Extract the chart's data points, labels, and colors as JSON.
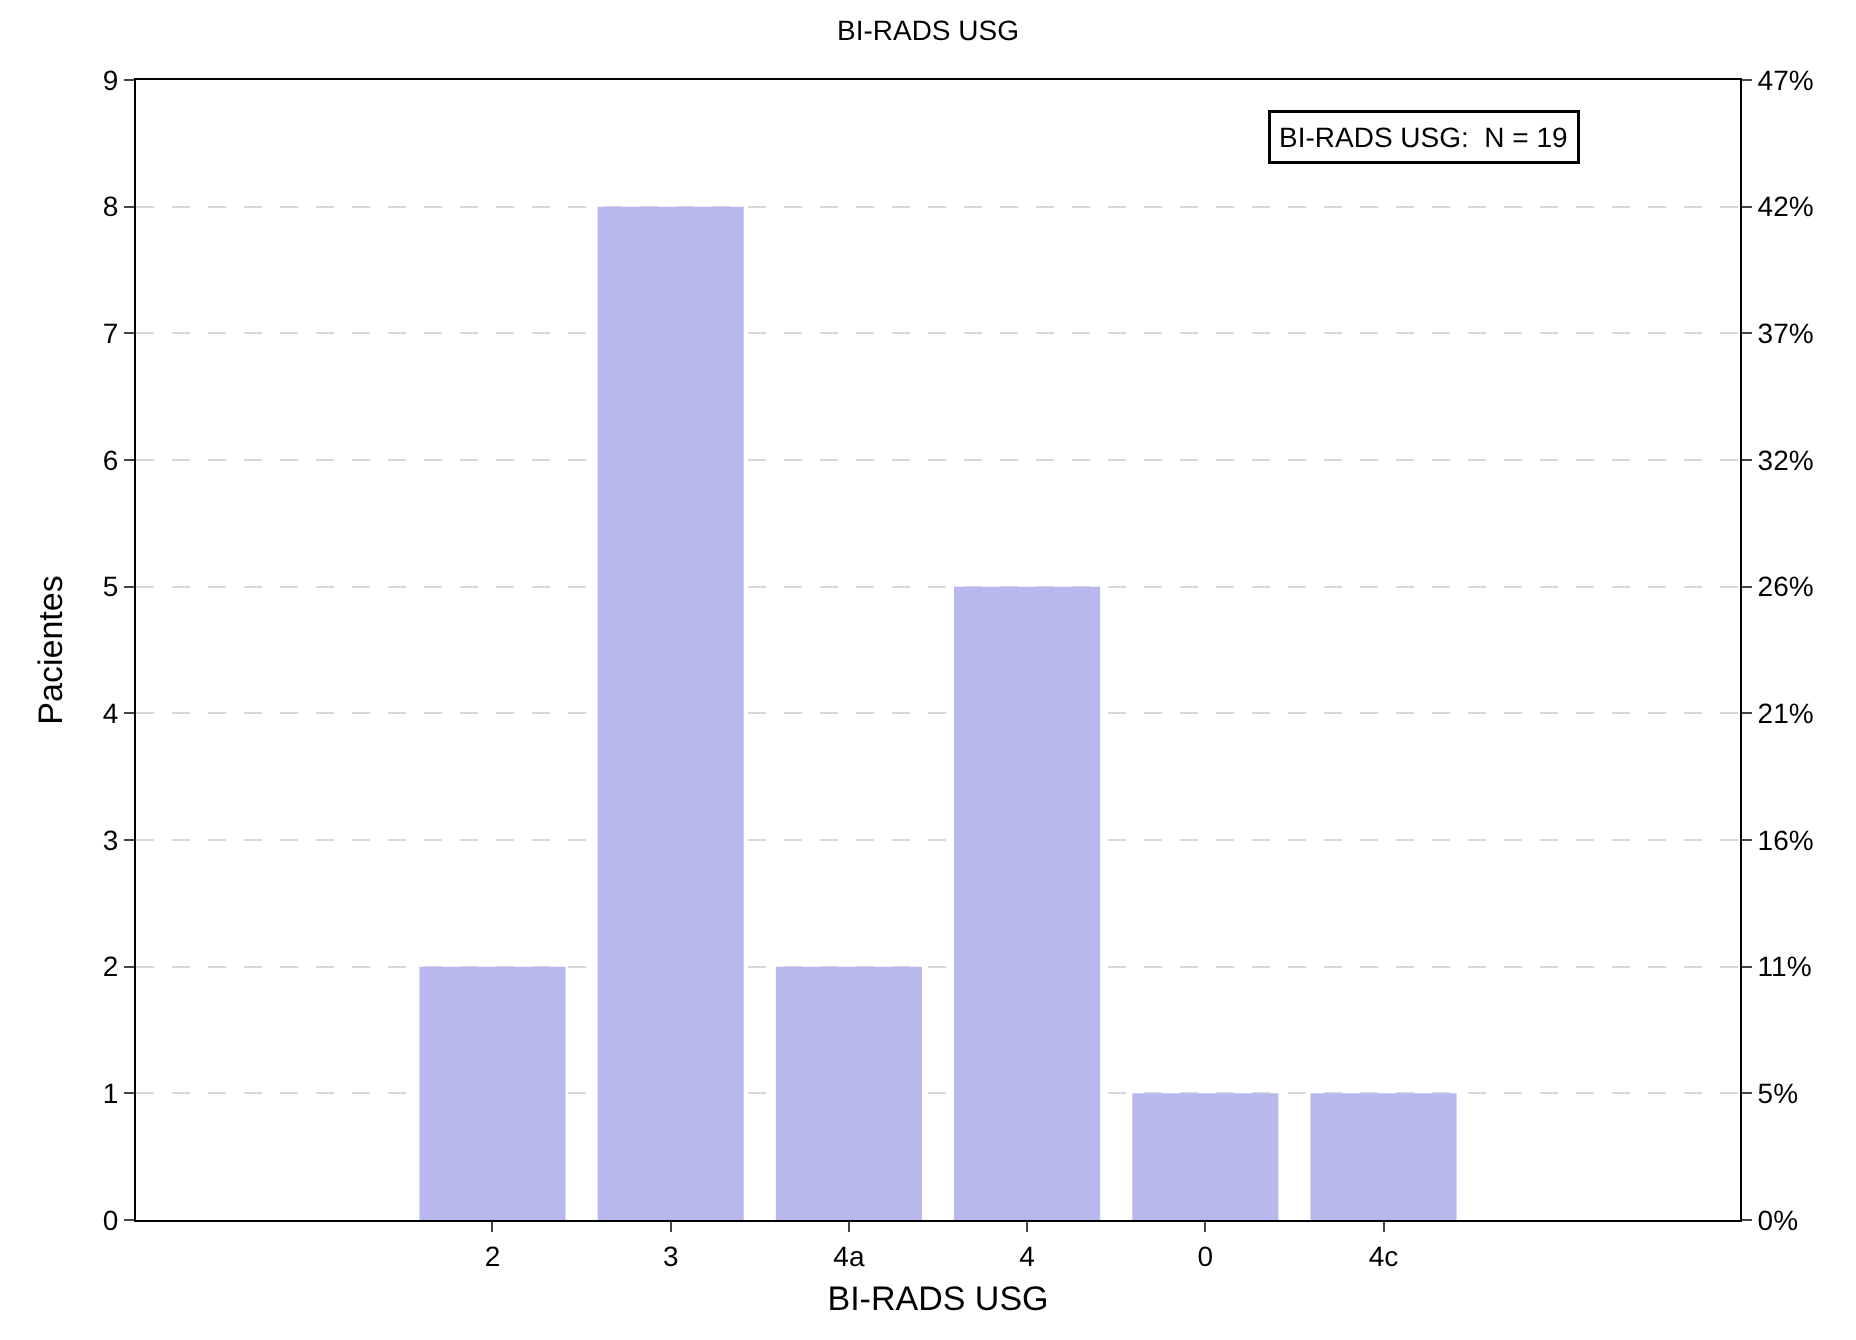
{
  "chart_data": {
    "type": "bar",
    "title": "BI-RADS USG",
    "xlabel": "BI-RADS USG",
    "ylabel": "Pacientes",
    "categories": [
      null,
      "2",
      "3",
      "4a",
      "4",
      "0",
      "4c",
      null
    ],
    "values": [
      null,
      2,
      8,
      2,
      5,
      1,
      1,
      null
    ],
    "color": "#b8b8ee",
    "ylim": [
      0,
      9
    ],
    "yticks": [
      0,
      1,
      2,
      3,
      4,
      5,
      6,
      7,
      8,
      9
    ],
    "y2lim": [
      0,
      47.37
    ],
    "y2ticks": [
      {
        "value": 0,
        "label": "0%"
      },
      {
        "value": 5.26,
        "label": "5%"
      },
      {
        "value": 10.53,
        "label": "11%"
      },
      {
        "value": 15.79,
        "label": "16%"
      },
      {
        "value": 21.05,
        "label": "21%"
      },
      {
        "value": 26.32,
        "label": "26%"
      },
      {
        "value": 31.58,
        "label": "32%"
      },
      {
        "value": 36.84,
        "label": "37%"
      },
      {
        "value": 42.11,
        "label": "42%"
      },
      {
        "value": 47.37,
        "label": "47%"
      }
    ],
    "grid": "y",
    "annotations": [
      "BI-RADS USG:  N = 19"
    ]
  }
}
